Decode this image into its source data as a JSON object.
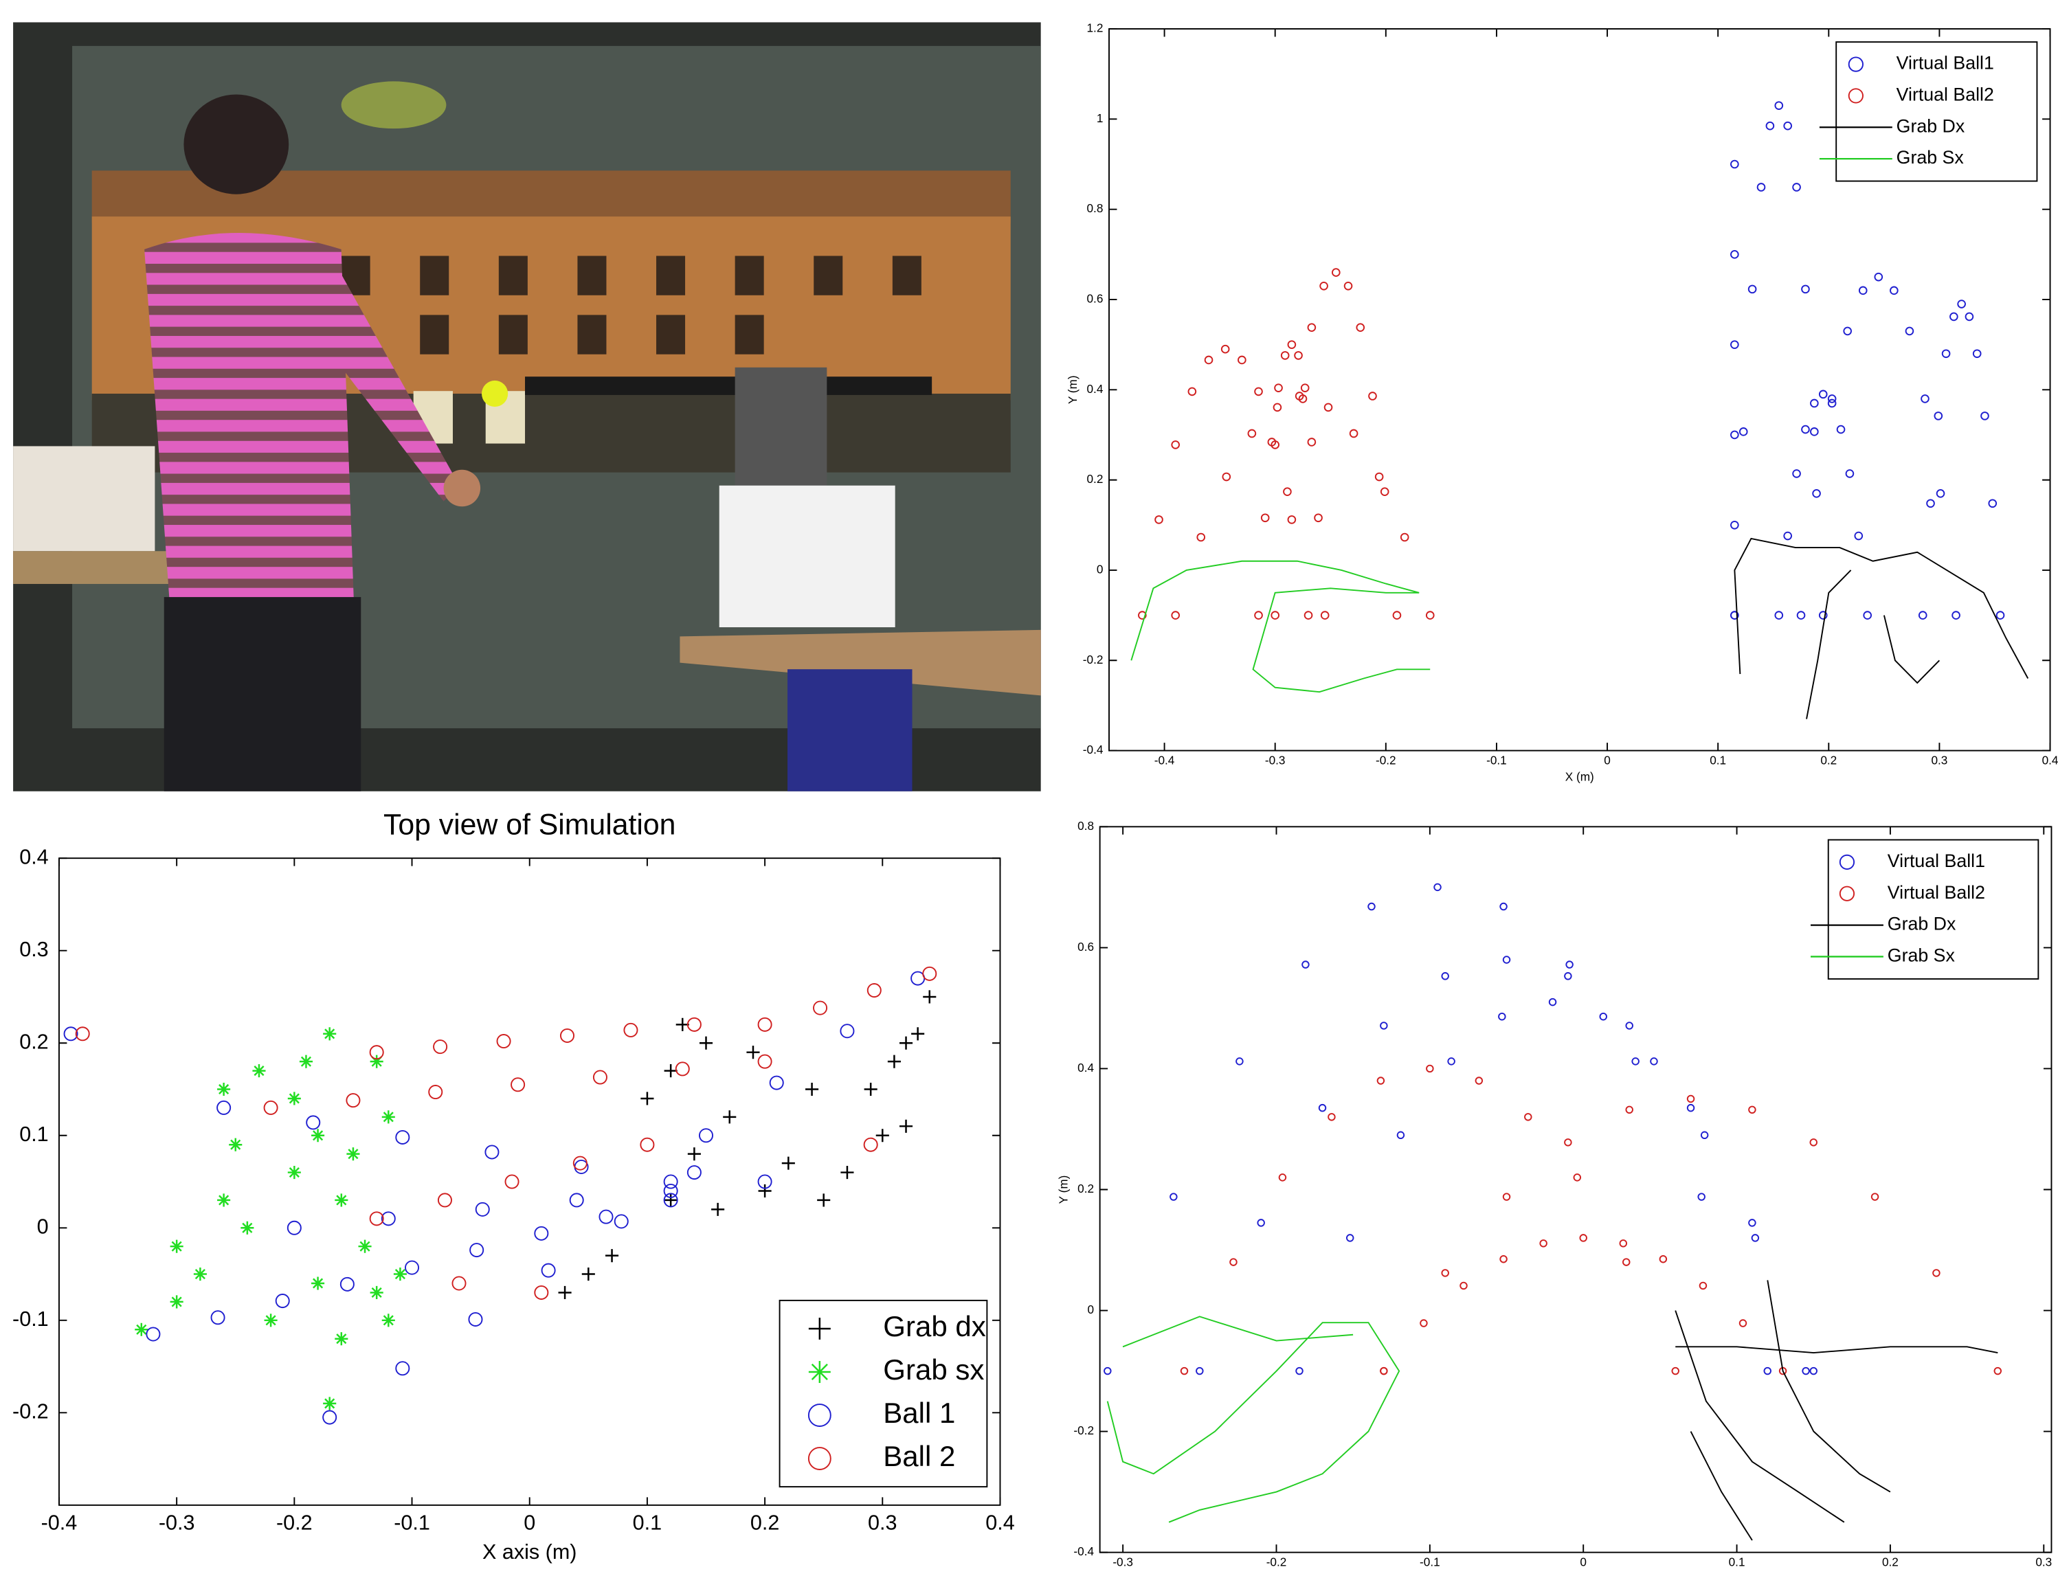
{
  "chart_data": [
    {
      "type": "scatter",
      "xlabel": "X (m)",
      "ylabel": "Y (m)",
      "xlim": [
        -0.45,
        0.4
      ],
      "ylim": [
        -0.4,
        1.2
      ],
      "xticks": [
        -0.4,
        -0.3,
        -0.2,
        -0.1,
        0,
        0.1,
        0.2,
        0.3,
        0.4
      ],
      "yticks": [
        -0.4,
        -0.2,
        0,
        0.2,
        0.4,
        0.6,
        0.8,
        1,
        1.2
      ],
      "legend": "upper right",
      "series": [
        {
          "name": "Virtual Ball1",
          "color": "#1f1fd0",
          "style": "circle",
          "x": [
            0.115,
            0.115,
            0.115,
            0.115,
            0.115,
            0.115,
            0.115,
            0.123,
            0.131,
            0.139,
            0.147,
            0.155,
            0.163,
            0.171,
            0.179,
            0.187,
            0.195,
            0.175,
            0.189,
            0.203,
            0.217,
            0.231,
            0.245,
            0.259,
            0.273,
            0.287,
            0.301,
            0.315,
            0.285,
            0.292,
            0.299,
            0.306,
            0.313,
            0.32,
            0.327,
            0.334,
            0.341,
            0.348,
            0.355,
            0.155,
            0.163,
            0.171,
            0.179,
            0.187,
            0.195,
            0.203,
            0.211,
            0.219,
            0.227,
            0.235
          ],
          "y": [
            -0.1,
            0.1,
            0.3,
            0.5,
            0.7,
            0.9,
            -0.1,
            0.307,
            0.623,
            0.849,
            0.985,
            1.03,
            0.985,
            0.849,
            0.623,
            0.307,
            -0.1,
            -0.1,
            0.17,
            0.38,
            0.53,
            0.62,
            0.65,
            0.62,
            0.53,
            0.38,
            0.17,
            -0.1,
            -0.1,
            0.148,
            0.342,
            0.48,
            0.562,
            0.59,
            0.562,
            0.48,
            0.342,
            0.148,
            -0.1,
            -0.1,
            0.076,
            0.214,
            0.312,
            0.37,
            0.39,
            0.37,
            0.312,
            0.214,
            0.076,
            -0.1
          ]
        },
        {
          "name": "Virtual Ball2",
          "color": "#d01f1f",
          "style": "circle",
          "x": [
            -0.42,
            -0.405,
            -0.39,
            -0.375,
            -0.36,
            -0.345,
            -0.33,
            -0.315,
            -0.3,
            -0.285,
            -0.27,
            -0.315,
            -0.309,
            -0.303,
            -0.297,
            -0.291,
            -0.285,
            -0.279,
            -0.273,
            -0.267,
            -0.261,
            -0.255,
            -0.3,
            -0.289,
            -0.278,
            -0.267,
            -0.256,
            -0.245,
            -0.234,
            -0.223,
            -0.212,
            -0.201,
            -0.19,
            -0.39,
            -0.367,
            -0.344,
            -0.321,
            -0.298,
            -0.275,
            -0.252,
            -0.229,
            -0.206,
            -0.183,
            -0.16
          ],
          "y": [
            -0.1,
            0.112,
            0.278,
            0.396,
            0.466,
            0.49,
            0.466,
            0.396,
            0.278,
            0.112,
            -0.1,
            -0.1,
            0.116,
            0.284,
            0.404,
            0.476,
            0.5,
            0.476,
            0.404,
            0.284,
            0.116,
            -0.1,
            -0.1,
            0.174,
            0.386,
            0.538,
            0.63,
            0.66,
            0.63,
            0.538,
            0.386,
            0.174,
            -0.1,
            -0.1,
            0.073,
            0.207,
            0.303,
            0.361,
            0.38,
            0.361,
            0.303,
            0.207,
            0.073,
            -0.1
          ]
        },
        {
          "name": "Grab Dx",
          "color": "#000000",
          "style": "line",
          "x": [
            0.12,
            0.115,
            0.13,
            0.17,
            0.21,
            0.24,
            0.28,
            0.32,
            0.34,
            0.36,
            0.38,
            null,
            0.18,
            0.19,
            0.2,
            0.22,
            null,
            0.25,
            0.26,
            0.28,
            0.3
          ],
          "y": [
            -0.23,
            0.0,
            0.07,
            0.05,
            0.05,
            0.02,
            0.04,
            -0.02,
            -0.05,
            -0.15,
            -0.24,
            null,
            -0.33,
            -0.2,
            -0.05,
            0.0,
            null,
            -0.1,
            -0.2,
            -0.25,
            -0.2
          ]
        },
        {
          "name": "Grab Sx",
          "color": "#22cc22",
          "style": "line",
          "x": [
            -0.43,
            -0.41,
            -0.38,
            -0.33,
            -0.28,
            -0.24,
            -0.2,
            -0.17,
            -0.2,
            -0.25,
            -0.3,
            -0.32,
            -0.3,
            -0.26,
            -0.22,
            -0.19,
            -0.16
          ],
          "y": [
            -0.2,
            -0.04,
            0.0,
            0.02,
            0.02,
            0.0,
            -0.03,
            -0.05,
            -0.05,
            -0.04,
            -0.05,
            -0.22,
            -0.26,
            -0.27,
            -0.24,
            -0.22,
            -0.22
          ]
        }
      ]
    },
    {
      "type": "scatter",
      "title": "Top view of Simulation",
      "xlabel": "X axis (m)",
      "xlim": [
        -0.4,
        0.4
      ],
      "ylim": [
        -0.3,
        0.4
      ],
      "xticks": [
        -0.4,
        -0.3,
        -0.2,
        -0.1,
        0,
        0.1,
        0.2,
        0.3,
        0.4
      ],
      "yticks": [
        -0.2,
        -0.1,
        0,
        0.1,
        0.2,
        0.3,
        0.4
      ],
      "legend": "lower right",
      "series": [
        {
          "name": "Grab dx",
          "color": "#000000",
          "style": "plus",
          "x": [
            0.13,
            0.15,
            0.12,
            0.17,
            0.14,
            0.12,
            0.16,
            0.2,
            0.22,
            0.25,
            0.27,
            0.3,
            0.32,
            0.29,
            0.31,
            0.33,
            0.34,
            0.32,
            0.19,
            0.1,
            0.05,
            0.03,
            0.07,
            0.24
          ],
          "y": [
            0.22,
            0.2,
            0.17,
            0.12,
            0.08,
            0.03,
            0.02,
            0.04,
            0.07,
            0.03,
            0.06,
            0.1,
            0.11,
            0.15,
            0.18,
            0.21,
            0.25,
            0.2,
            0.19,
            0.14,
            -0.05,
            -0.07,
            -0.03,
            0.15
          ]
        },
        {
          "name": "Grab sx",
          "color": "#22dd22",
          "style": "star",
          "x": [
            -0.33,
            -0.3,
            -0.28,
            -0.3,
            -0.26,
            -0.25,
            -0.26,
            -0.23,
            -0.2,
            -0.19,
            -0.17,
            -0.18,
            -0.15,
            -0.2,
            -0.16,
            -0.14,
            -0.18,
            -0.17,
            -0.16,
            -0.13,
            -0.12,
            -0.11,
            -0.22,
            -0.24,
            -0.12,
            -0.13
          ],
          "y": [
            -0.11,
            -0.08,
            -0.05,
            -0.02,
            0.03,
            0.09,
            0.15,
            0.17,
            0.14,
            0.18,
            0.21,
            0.1,
            0.08,
            0.06,
            0.03,
            -0.02,
            -0.06,
            -0.19,
            -0.12,
            -0.07,
            -0.1,
            -0.05,
            -0.1,
            0.0,
            0.12,
            0.18
          ]
        },
        {
          "name": "Ball 1",
          "color": "#1f1fd0",
          "style": "circle",
          "x": [
            -0.32,
            -0.265,
            -0.21,
            -0.155,
            -0.1,
            -0.045,
            0.01,
            0.065,
            0.12,
            -0.17,
            -0.108,
            -0.046,
            0.016,
            0.078,
            0.14,
            -0.26,
            -0.184,
            -0.108,
            -0.032,
            0.044,
            0.12,
            -0.2,
            -0.12,
            -0.04,
            0.04,
            0.12,
            0.2,
            0.15,
            0.21,
            0.27,
            0.33,
            -0.39
          ],
          "y": [
            -0.115,
            -0.097,
            -0.079,
            -0.061,
            -0.043,
            -0.024,
            -0.006,
            0.012,
            0.03,
            -0.205,
            -0.152,
            -0.099,
            -0.046,
            0.007,
            0.06,
            0.13,
            0.114,
            0.098,
            0.082,
            0.066,
            0.05,
            0.0,
            0.01,
            0.02,
            0.03,
            0.04,
            0.05,
            0.1,
            0.157,
            0.213,
            0.27,
            0.21
          ]
        },
        {
          "name": "Ball 2",
          "color": "#d01f1f",
          "style": "circle",
          "x": [
            -0.13,
            -0.076,
            -0.022,
            0.032,
            0.086,
            0.14,
            -0.22,
            -0.15,
            -0.08,
            -0.01,
            0.06,
            0.13,
            0.2,
            -0.13,
            -0.072,
            -0.015,
            0.043,
            0.1,
            0.2,
            0.247,
            0.293,
            0.34,
            -0.06,
            0.01,
            -0.38,
            0.29
          ],
          "y": [
            0.19,
            0.196,
            0.202,
            0.208,
            0.214,
            0.22,
            0.13,
            0.138,
            0.147,
            0.155,
            0.163,
            0.172,
            0.18,
            0.01,
            0.03,
            0.05,
            0.07,
            0.09,
            0.22,
            0.238,
            0.257,
            0.275,
            -0.06,
            -0.07,
            0.21,
            0.09
          ]
        }
      ]
    },
    {
      "type": "scatter",
      "ylabel": "Y (m)",
      "xlim": [
        -0.315,
        0.305
      ],
      "ylim": [
        -0.4,
        0.8
      ],
      "xticks": [
        -0.3,
        -0.2,
        -0.1,
        0,
        0.1,
        0.2,
        0.3
      ],
      "yticks": [
        -0.4,
        -0.2,
        0,
        0.2,
        0.4,
        0.6,
        0.8
      ],
      "legend": "upper right",
      "series": [
        {
          "name": "Virtual Ball1",
          "color": "#1f1fd0",
          "style": "circle",
          "x": [
            -0.31,
            -0.267,
            -0.224,
            -0.181,
            -0.138,
            -0.095,
            -0.052,
            -0.009,
            0.034,
            0.077,
            0.12,
            -0.25,
            -0.21,
            -0.17,
            -0.13,
            -0.09,
            -0.05,
            -0.01,
            0.03,
            0.07,
            0.11,
            0.15,
            -0.185,
            -0.152,
            -0.119,
            -0.086,
            -0.053,
            -0.02,
            0.013,
            0.046,
            0.079,
            0.112,
            0.145
          ],
          "y": [
            -0.1,
            0.188,
            0.412,
            0.572,
            0.668,
            0.7,
            0.668,
            0.572,
            0.412,
            0.188,
            -0.1,
            -0.1,
            0.145,
            0.335,
            0.471,
            0.553,
            0.58,
            0.553,
            0.471,
            0.335,
            0.145,
            -0.1,
            -0.1,
            0.12,
            0.29,
            0.412,
            0.486,
            0.51,
            0.486,
            0.412,
            0.29,
            0.12,
            -0.1
          ]
        },
        {
          "name": "Virtual Ball2",
          "color": "#d01f1f",
          "style": "circle",
          "x": [
            -0.26,
            -0.228,
            -0.196,
            -0.164,
            -0.132,
            -0.1,
            -0.068,
            -0.036,
            -0.004,
            0.028,
            0.06,
            -0.13,
            -0.09,
            -0.05,
            -0.01,
            0.03,
            0.07,
            0.11,
            0.15,
            0.19,
            0.23,
            0.27,
            -0.13,
            -0.104,
            -0.078,
            -0.052,
            -0.026,
            0,
            0.026,
            0.052,
            0.078,
            0.104,
            0.13
          ],
          "y": [
            -0.1,
            0.08,
            0.22,
            0.32,
            0.38,
            0.4,
            0.38,
            0.32,
            0.22,
            0.08,
            -0.1,
            -0.1,
            0.062,
            0.188,
            0.278,
            0.332,
            0.35,
            0.332,
            0.278,
            0.188,
            0.062,
            -0.1,
            -0.1,
            -0.021,
            0.041,
            0.085,
            0.111,
            0.12,
            0.111,
            0.085,
            0.041,
            -0.021,
            -0.1
          ]
        },
        {
          "name": "Grab Dx",
          "color": "#000000",
          "style": "line",
          "x": [
            0.06,
            0.1,
            0.15,
            0.2,
            0.25,
            0.27,
            null,
            0.06,
            0.08,
            0.11,
            0.14,
            0.17,
            null,
            0.12,
            0.13,
            0.15,
            0.18,
            0.2,
            null,
            0.07,
            0.09,
            0.11
          ],
          "y": [
            -0.06,
            -0.06,
            -0.07,
            -0.06,
            -0.06,
            -0.07,
            null,
            0.0,
            -0.15,
            -0.25,
            -0.3,
            -0.35,
            null,
            0.05,
            -0.1,
            -0.2,
            -0.27,
            -0.3,
            null,
            -0.2,
            -0.3,
            -0.38
          ]
        },
        {
          "name": "Grab Sx",
          "color": "#22cc22",
          "style": "line",
          "x": [
            -0.31,
            -0.3,
            -0.28,
            -0.24,
            -0.2,
            -0.17,
            -0.14,
            -0.12,
            -0.14,
            -0.17,
            -0.2,
            -0.25,
            -0.27,
            null,
            -0.3,
            -0.25,
            -0.2,
            -0.15
          ],
          "y": [
            -0.15,
            -0.25,
            -0.27,
            -0.2,
            -0.1,
            -0.02,
            -0.02,
            -0.1,
            -0.2,
            -0.27,
            -0.3,
            -0.33,
            -0.35,
            null,
            -0.06,
            -0.01,
            -0.05,
            -0.04
          ]
        }
      ]
    }
  ]
}
